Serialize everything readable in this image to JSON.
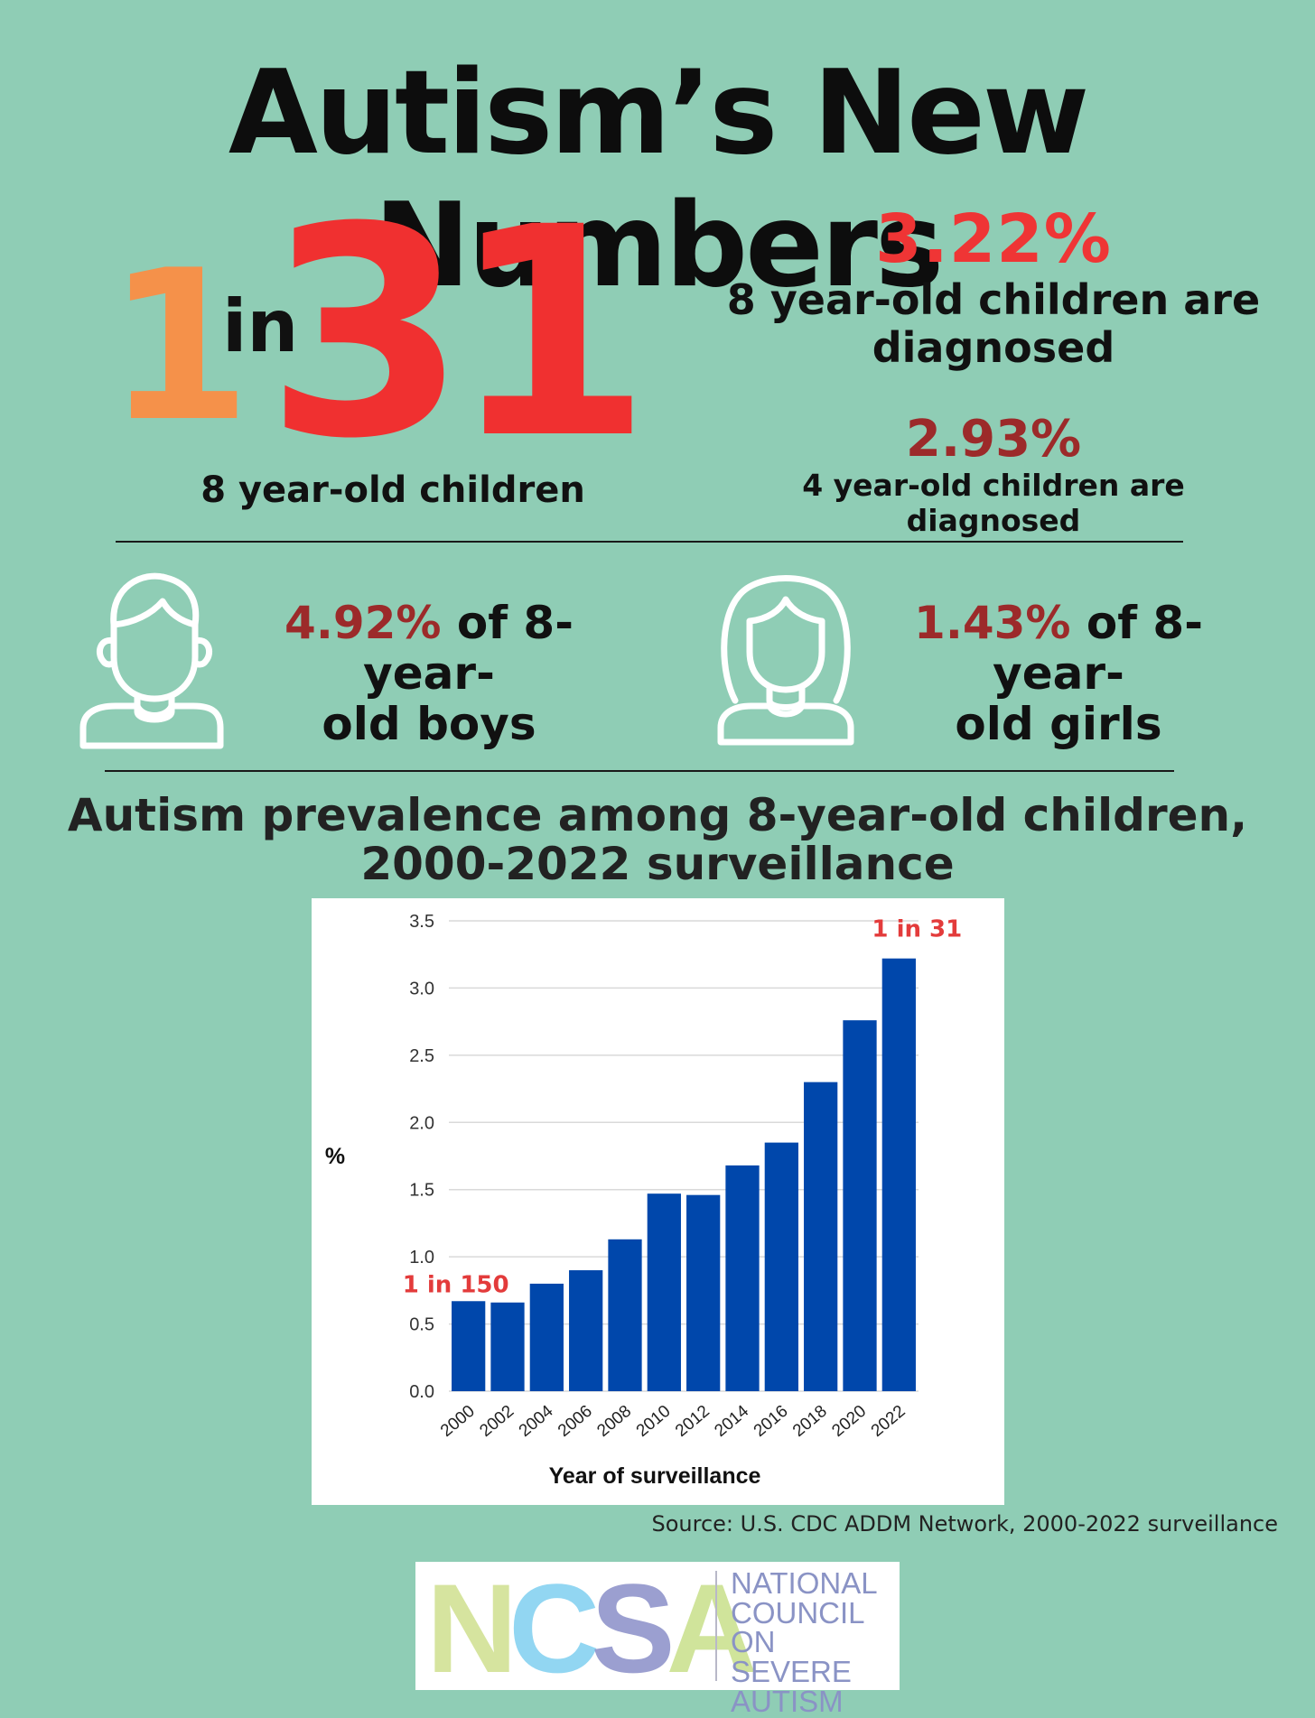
{
  "header": {
    "title": "Autism’s New Numbers"
  },
  "headline_ratio": {
    "numerator": "1",
    "connector": "in",
    "denominator": "31",
    "caption": "8 year-old children"
  },
  "stats": {
    "eight_year": {
      "value": "3.22%",
      "caption_line1": "8 year-old children are",
      "caption_line2": "diagnosed"
    },
    "four_year": {
      "value": "2.93%",
      "caption": "4 year-old children are diagnosed"
    }
  },
  "gender": {
    "boys": {
      "icon": "boy-icon",
      "value": "4.92%",
      "text_line1": " of 8-year-",
      "text_line2": "old boys"
    },
    "girls": {
      "icon": "girl-icon",
      "value": "1.43%",
      "text_line1": " of 8-year-",
      "text_line2": "old girls"
    }
  },
  "chart_data": {
    "type": "bar",
    "title_line1": "Autism prevalence among 8-year-old children,",
    "title_line2": "2000-2022 surveillance",
    "categories": [
      "2000",
      "2002",
      "2004",
      "2006",
      "2008",
      "2010",
      "2012",
      "2014",
      "2016",
      "2018",
      "2020",
      "2022"
    ],
    "values": [
      0.67,
      0.66,
      0.8,
      0.9,
      1.13,
      1.47,
      1.46,
      1.68,
      1.85,
      2.3,
      2.76,
      3.22
    ],
    "xlabel": "Year of surveillance",
    "ylabel": "%",
    "ylim": [
      0,
      3.5
    ],
    "yticks": [
      "0.0",
      "0.5",
      "1.0",
      "1.5",
      "2.0",
      "2.5",
      "3.0",
      "3.5"
    ],
    "grid": true,
    "bar_color": "#0047ab",
    "annotations": [
      {
        "category": "2000",
        "text": "1 in 150"
      },
      {
        "category": "2022",
        "text": "1 in 31"
      }
    ]
  },
  "source": "Source: U.S. CDC ADDM Network, 2000-2022 surveillance",
  "logo": {
    "letters": [
      "N",
      "C",
      "S",
      "A"
    ],
    "text_lines": [
      "NATIONAL",
      "COUNCIL",
      "ON SEVERE",
      "AUTISM"
    ]
  },
  "colors": {
    "background": "#8fcdb5",
    "orange": "#f5914a",
    "red": "#f03030",
    "dark_red": "#9c2a2a"
  }
}
